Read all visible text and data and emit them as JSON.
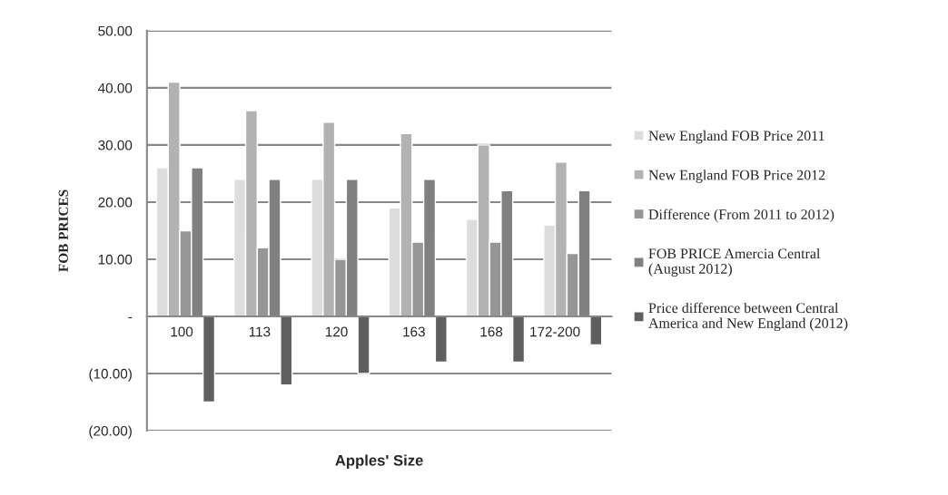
{
  "chart_data": {
    "type": "bar",
    "xlabel": "Apples' Size",
    "ylabel": "FOB PRICES",
    "categories": [
      "100",
      "113",
      "120",
      "163",
      "168",
      "172-200"
    ],
    "series": [
      {
        "name": "New England FOB Price 2011",
        "color": "#dddddd",
        "values": [
          26,
          24,
          24,
          19,
          17,
          16
        ]
      },
      {
        "name": "New England FOB Price 2012",
        "color": "#b2b2b2",
        "values": [
          41,
          36,
          34,
          32,
          30,
          27
        ]
      },
      {
        "name": "Difference (From 2011 to 2012)",
        "color": "#969696",
        "values": [
          15,
          12,
          10,
          13,
          13,
          11
        ]
      },
      {
        "name": "FOB PRICE Amercia Central\n(August 2012)",
        "color": "#808080",
        "values": [
          26,
          24,
          24,
          24,
          22,
          22
        ]
      },
      {
        "name": "Price difference between Central\nAmerica and New England (2012)",
        "color": "#5f5f5f",
        "values": [
          -15,
          -12,
          -10,
          -8,
          -8,
          -5
        ]
      }
    ],
    "ylim": [
      -20,
      50
    ],
    "yticks": [
      {
        "value": -20,
        "label": "(20.00)"
      },
      {
        "value": -10,
        "label": "(10.00)"
      },
      {
        "value": 0,
        "label": "-"
      },
      {
        "value": 10,
        "label": "10.00"
      },
      {
        "value": 20,
        "label": "20.00"
      },
      {
        "value": 30,
        "label": "30.00"
      },
      {
        "value": 40,
        "label": "40.00"
      },
      {
        "value": 50,
        "label": "50.00"
      }
    ],
    "grid": "y",
    "legend": "right"
  }
}
